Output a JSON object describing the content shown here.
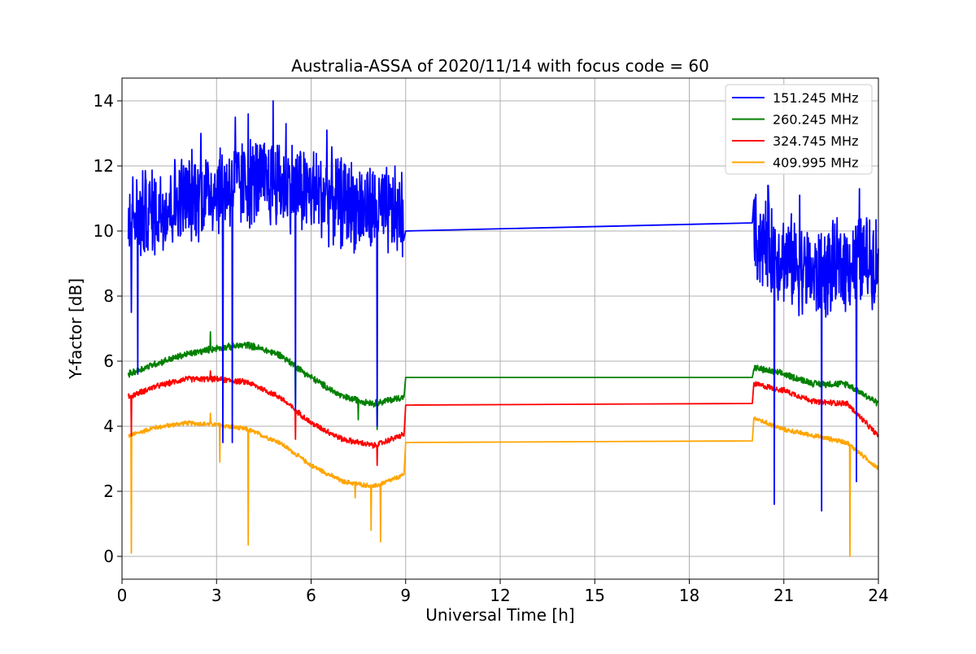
{
  "chart_data": {
    "type": "line",
    "title": "Australia-ASSA of 2020/11/14 with focus code = 60",
    "xlabel": "Universal Time [h]",
    "ylabel": "Y-factor [dB]",
    "xlim": [
      0,
      24
    ],
    "ylim": [
      -0.7,
      14.7
    ],
    "xticks": [
      0,
      3,
      6,
      9,
      12,
      15,
      18,
      21,
      24
    ],
    "yticks": [
      0,
      2,
      4,
      6,
      8,
      10,
      12,
      14
    ],
    "xtick_labels": [
      "0",
      "3",
      "6",
      "9",
      "12",
      "15",
      "18",
      "21",
      "24"
    ],
    "ytick_labels": [
      "0",
      "2",
      "4",
      "6",
      "8",
      "10",
      "12",
      "14"
    ],
    "grid": true,
    "legend_position": "top-right",
    "series": [
      {
        "name": "151.245 MHz",
        "color": "#0000ff",
        "noise": 1.6,
        "x": [
          0.2,
          1,
          2,
          3,
          4,
          5,
          6,
          7,
          8,
          8.95,
          9.0,
          20.0,
          20.05,
          21,
          22,
          23,
          24
        ],
        "center": [
          10.3,
          10.6,
          11.0,
          11.3,
          11.5,
          11.5,
          11.2,
          10.9,
          10.6,
          10.5,
          10.0,
          10.25,
          9.8,
          9.2,
          8.6,
          9.0,
          9.2
        ],
        "min": [
          [
            0.3,
            7.5
          ],
          [
            0.5,
            5.6
          ],
          [
            3.2,
            3.5
          ],
          [
            3.5,
            3.5
          ],
          [
            5.5,
            4.5
          ],
          [
            8.1,
            4.0
          ],
          [
            20.7,
            1.6
          ],
          [
            22.2,
            1.4
          ],
          [
            23.3,
            2.3
          ]
        ],
        "max": [
          [
            4.8,
            14.0
          ],
          [
            4.0,
            13.6
          ],
          [
            3.6,
            13.5
          ],
          [
            2.5,
            13.0
          ],
          [
            5.2,
            13.3
          ],
          [
            6.5,
            13.1
          ],
          [
            20.5,
            11.4
          ],
          [
            21.5,
            11.1
          ],
          [
            23.4,
            11.3
          ]
        ]
      },
      {
        "name": "260.245 MHz",
        "color": "#008000",
        "noise": 0.12,
        "x": [
          0.2,
          1,
          2,
          3,
          4,
          5,
          6,
          7,
          8,
          8.95,
          9.0,
          20.0,
          20.05,
          21,
          22,
          23,
          24
        ],
        "center": [
          5.6,
          5.9,
          6.2,
          6.4,
          6.5,
          6.2,
          5.5,
          4.9,
          4.7,
          4.9,
          5.5,
          5.5,
          5.8,
          5.6,
          5.3,
          5.3,
          4.7
        ],
        "min": [
          [
            7.5,
            4.2
          ],
          [
            8.1,
            3.9
          ],
          [
            5.5,
            4.7
          ]
        ],
        "max": [
          [
            2.8,
            6.9
          ]
        ]
      },
      {
        "name": "324.745 MHz",
        "color": "#ff0000",
        "noise": 0.1,
        "x": [
          0.2,
          1,
          2,
          3,
          4,
          5,
          6,
          7,
          8,
          8.95,
          9.0,
          20.0,
          20.05,
          21,
          22,
          23,
          24
        ],
        "center": [
          4.9,
          5.2,
          5.45,
          5.45,
          5.35,
          4.9,
          4.1,
          3.6,
          3.4,
          3.75,
          4.65,
          4.7,
          5.3,
          5.1,
          4.75,
          4.7,
          3.7
        ],
        "min": [
          [
            0.3,
            3.7
          ],
          [
            5.5,
            3.6
          ],
          [
            8.1,
            2.8
          ]
        ],
        "max": [
          [
            2.8,
            5.7
          ]
        ]
      },
      {
        "name": "409.995 MHz",
        "color": "#ffa500",
        "noise": 0.08,
        "x": [
          0.2,
          1,
          2,
          3,
          4,
          5,
          6,
          7,
          8,
          8.95,
          9.0,
          20.0,
          20.05,
          21,
          22,
          23,
          24
        ],
        "center": [
          3.7,
          3.95,
          4.1,
          4.05,
          3.9,
          3.5,
          2.8,
          2.3,
          2.15,
          2.5,
          3.5,
          3.55,
          4.25,
          3.9,
          3.7,
          3.5,
          2.7
        ],
        "min": [
          [
            0.3,
            0.1
          ],
          [
            4.0,
            0.35
          ],
          [
            8.2,
            0.45
          ],
          [
            7.9,
            0.8
          ],
          [
            3.1,
            2.9
          ],
          [
            23.1,
            0.0
          ],
          [
            7.4,
            1.8
          ]
        ],
        "max": [
          [
            2.8,
            4.4
          ]
        ]
      }
    ]
  }
}
